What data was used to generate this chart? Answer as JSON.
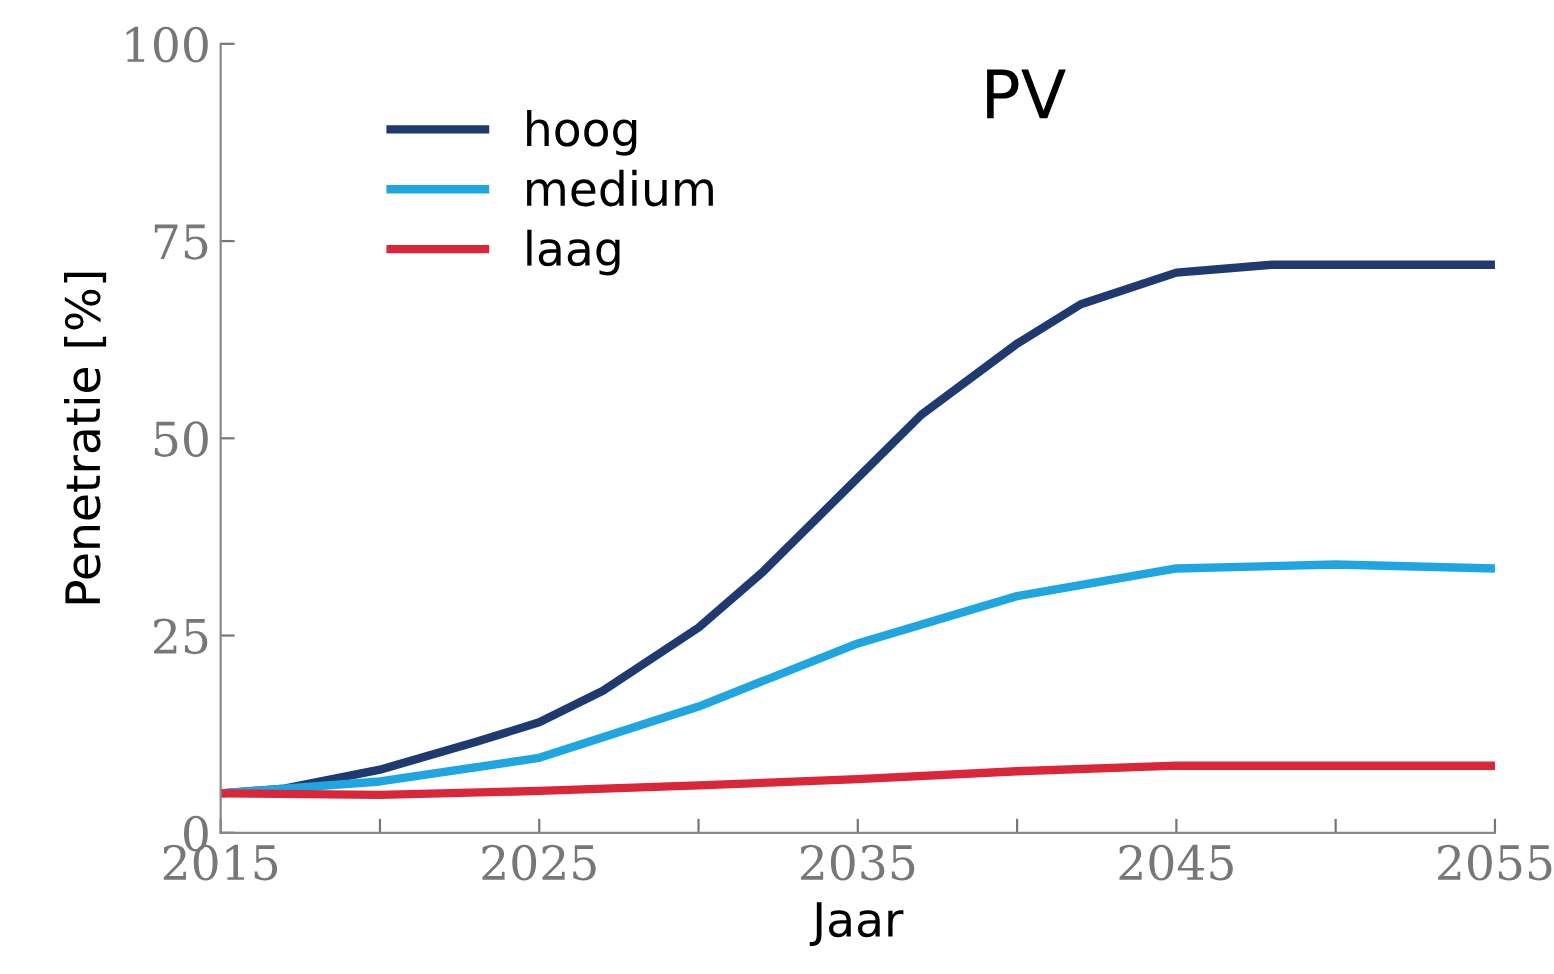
{
  "chart_data": {
    "type": "line",
    "title": "PV",
    "xlabel": "Jaar",
    "ylabel": "Penetratie [%]",
    "xlim": [
      2015,
      2055
    ],
    "xticks": [
      2015,
      {
        "value": 2020,
        "label": null
      },
      2025,
      {
        "value": 2030,
        "label": null
      },
      2035,
      {
        "value": 2040,
        "label": null
      },
      2045,
      {
        "value": 2050,
        "label": null
      },
      2055
    ],
    "ylim": [
      0,
      100
    ],
    "yticks": [
      0,
      25,
      50,
      75,
      100
    ],
    "grid": false,
    "legend": "top left",
    "marker": "none",
    "line_style": "solid",
    "series": [
      {
        "name": "hoog",
        "color": "#1f3a6e",
        "x": [
          2015,
          2017,
          2020,
          2023,
          2025,
          2027,
          2030,
          2032,
          2035,
          2037,
          2040,
          2042,
          2045,
          2048,
          2050,
          2055
        ],
        "values": [
          5,
          5.6,
          8,
          11.5,
          14,
          18,
          26,
          33,
          45,
          53,
          62,
          67,
          71,
          72,
          72,
          72
        ]
      },
      {
        "name": "medium",
        "color": "#1fa6e0",
        "x": [
          2015,
          2020,
          2025,
          2030,
          2035,
          2040,
          2045,
          2050,
          2055
        ],
        "values": [
          5,
          6.5,
          9.5,
          16,
          24,
          30,
          33.5,
          34,
          33.5
        ]
      },
      {
        "name": "laag",
        "color": "#d92638",
        "x": [
          2015,
          2020,
          2025,
          2030,
          2035,
          2040,
          2045,
          2050,
          2055
        ],
        "values": [
          5,
          4.8,
          5.3,
          6,
          6.8,
          7.8,
          8.5,
          8.5,
          8.5
        ]
      }
    ]
  }
}
